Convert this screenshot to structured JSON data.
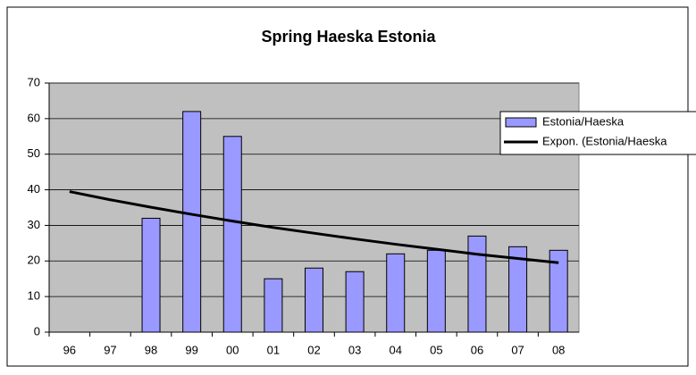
{
  "chart_data": {
    "type": "bar",
    "title": "Spring Haeska Estonia",
    "categories": [
      "96",
      "97",
      "98",
      "99",
      "00",
      "01",
      "02",
      "03",
      "04",
      "05",
      "06",
      "07",
      "08"
    ],
    "series": [
      {
        "name": "Estonia/Haeska",
        "type": "bar",
        "color": "#9999ff",
        "values": [
          null,
          null,
          32,
          62,
          55,
          15,
          18,
          17,
          22,
          23,
          27,
          24,
          23
        ]
      },
      {
        "name": "Expon. (Estonia/Haeska",
        "type": "line",
        "color": "#000000",
        "values": [
          39.5,
          37.2,
          35.1,
          33.1,
          31.2,
          29.4,
          27.8,
          26.2,
          24.7,
          23.3,
          21.9,
          20.7,
          19.5
        ]
      }
    ],
    "ylim": [
      0,
      70
    ],
    "yticks": [
      0,
      10,
      20,
      30,
      40,
      50,
      60,
      70
    ],
    "grid": true,
    "plot_background": "#c0c0c0",
    "legend": "right"
  }
}
